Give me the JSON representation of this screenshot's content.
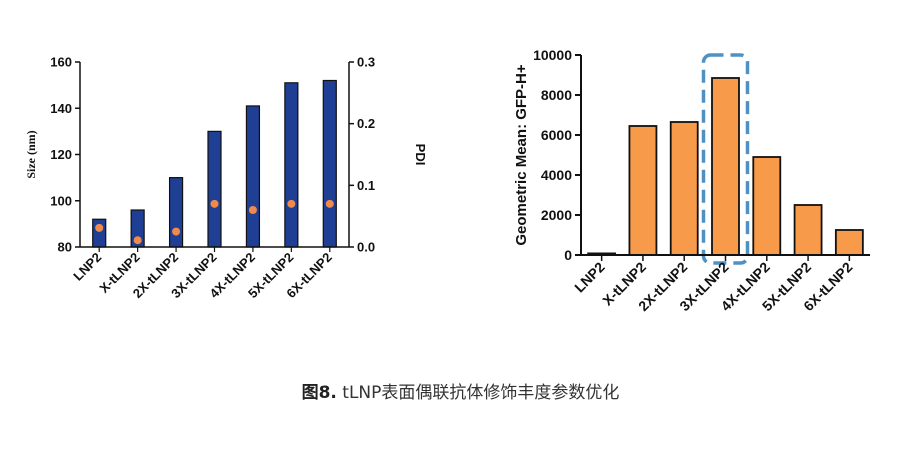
{
  "chart_data": [
    {
      "type": "bar",
      "title": "",
      "categories": [
        "LNP2",
        "X-tLNP2",
        "2X-tLNP2",
        "3X-tLNP2",
        "4X-tLNP2",
        "5X-tLNP2",
        "6X-tLNP2"
      ],
      "series": [
        {
          "name": "",
          "axis": "left",
          "values": [
            92,
            96,
            110,
            130,
            141,
            151,
            152
          ],
          "color": "#1f3f94"
        },
        {
          "name": "",
          "axis": "right",
          "kind": "point",
          "values": [
            0.031,
            0.011,
            0.025,
            0.07,
            0.06,
            0.07,
            0.07
          ],
          "color": "#f08a4b"
        }
      ],
      "ylabel": "Size (nm)",
      "ylim": [
        80,
        160
      ],
      "yticks": [
        80,
        100,
        120,
        140,
        160
      ],
      "y2label": "PDI",
      "y2lim": [
        0,
        0.3
      ],
      "y2ticks": [
        0.0,
        0.1,
        0.2,
        0.3
      ],
      "y2ticklabels": [
        "0.0",
        "0.1",
        "0.2",
        "0.3"
      ],
      "grid": false
    },
    {
      "type": "bar",
      "title": "",
      "categories": [
        "LNP2",
        "X-tLNP2",
        "2X-tLNP2",
        "3X-tLNP2",
        "4X-tLNP2",
        "5X-tLNP2",
        "6X-tLNP2"
      ],
      "series": [
        {
          "name": "",
          "values": [
            80,
            6450,
            6650,
            8850,
            4900,
            2500,
            1250
          ],
          "color": "#f79a4a"
        }
      ],
      "ylabel": "Geometric Mean: GFP-H+",
      "ylim": [
        0,
        10000
      ],
      "yticks": [
        0,
        2000,
        4000,
        6000,
        8000,
        10000
      ],
      "highlight": "3X-tLNP2",
      "grid": false
    }
  ],
  "caption": {
    "label": "图8.",
    "text": " tLNP表面偶联抗体修饰丰度参数优化"
  }
}
